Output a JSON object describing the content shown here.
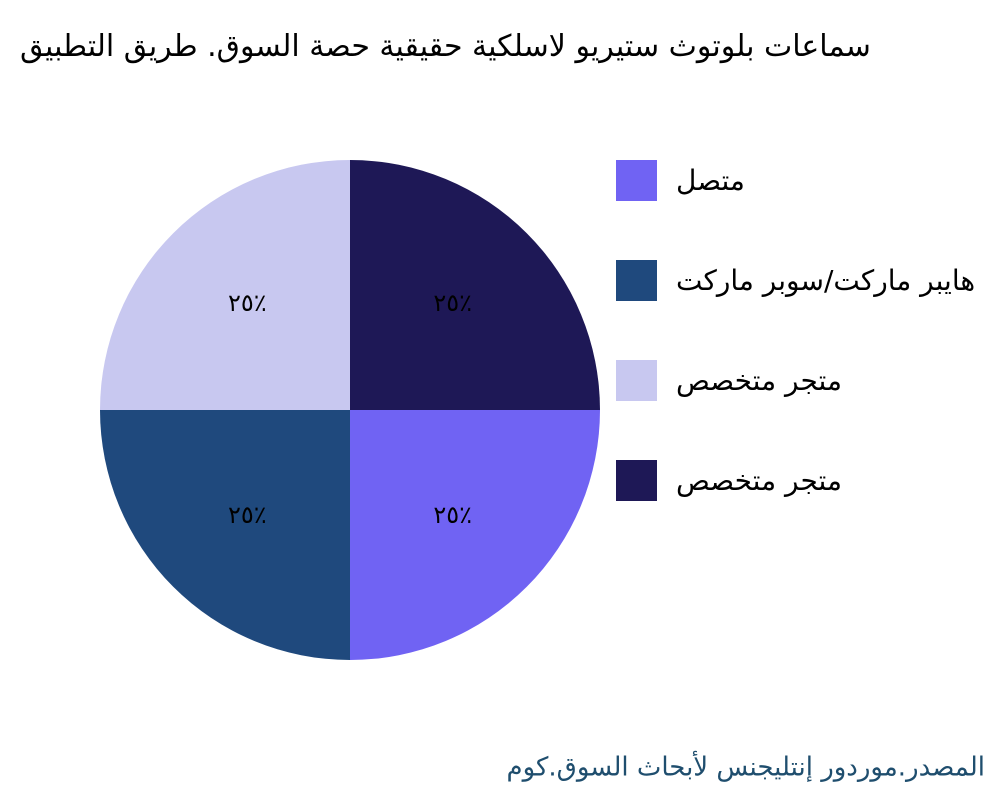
{
  "chart_data": {
    "type": "pie",
    "title": "سماعات بلوتوث ستيريو لاسلكية حقيقية حصة السوق. طريق التطبيق",
    "series": [
      {
        "name": "متصل",
        "color": "#7063f3",
        "values": [
          25
        ],
        "value_labels": [
          "٢٥٪"
        ]
      },
      {
        "name": "هايبر ماركت/سوبر ماركت",
        "color": "#1f497d",
        "values": [
          25
        ],
        "value_labels": [
          "٢٥٪"
        ]
      },
      {
        "name": "متجر متخصص",
        "color": "#c8c8f0",
        "values": [
          25
        ],
        "value_labels": [
          "٢٥٪"
        ]
      },
      {
        "name": "متجر متخصص",
        "color": "#1e1856",
        "values": [
          25
        ],
        "value_labels": [
          "٢٥٪"
        ]
      }
    ],
    "legend": "right",
    "footer": "المصدر.موردور إنتليجنس لأبحاث السوق.كوم"
  }
}
